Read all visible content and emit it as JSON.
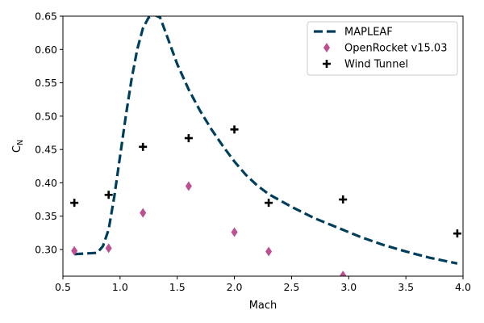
{
  "chart_data": {
    "type": "line",
    "xlabel": "Mach",
    "ylabel": "C_N",
    "xlim": [
      0.5,
      4.0
    ],
    "ylim": [
      0.26,
      0.65
    ],
    "x_ticks": [
      "0.5",
      "1.0",
      "1.5",
      "2.0",
      "2.5",
      "3.0",
      "3.5",
      "4.0"
    ],
    "y_ticks": [
      "0.30",
      "0.35",
      "0.40",
      "0.45",
      "0.50",
      "0.55",
      "0.60",
      "0.65"
    ],
    "grid": false,
    "legend_position": "top-right",
    "series": [
      {
        "name": "MAPLEAF",
        "kind": "line",
        "style": "dashed",
        "color": "#003f5c",
        "x": [
          0.6,
          0.8,
          0.85,
          0.9,
          0.95,
          1.0,
          1.05,
          1.1,
          1.15,
          1.2,
          1.25,
          1.3,
          1.35,
          1.4,
          1.5,
          1.6,
          1.7,
          1.8,
          1.9,
          2.0,
          2.1,
          2.2,
          2.3,
          2.5,
          2.7,
          2.9,
          3.1,
          3.3,
          3.5,
          3.7,
          3.95
        ],
        "y": [
          0.293,
          0.295,
          0.305,
          0.33,
          0.38,
          0.44,
          0.5,
          0.555,
          0.6,
          0.632,
          0.648,
          0.652,
          0.648,
          0.625,
          0.578,
          0.54,
          0.508,
          0.48,
          0.455,
          0.432,
          0.412,
          0.396,
          0.383,
          0.364,
          0.347,
          0.333,
          0.319,
          0.307,
          0.297,
          0.288,
          0.279
        ]
      },
      {
        "name": "OpenRocket v15.03",
        "kind": "marker",
        "marker": "diamond",
        "color": "#bc5090",
        "x": [
          0.6,
          0.9,
          1.2,
          1.6,
          2.0,
          2.3,
          2.95
        ],
        "y": [
          0.298,
          0.302,
          0.355,
          0.395,
          0.326,
          0.297,
          0.261
        ]
      },
      {
        "name": "Wind Tunnel",
        "kind": "marker",
        "marker": "plus",
        "color": "#000000",
        "x": [
          0.6,
          0.9,
          1.2,
          1.6,
          2.0,
          2.3,
          2.95,
          3.95
        ],
        "y": [
          0.37,
          0.382,
          0.454,
          0.467,
          0.48,
          0.37,
          0.375,
          0.324
        ]
      }
    ]
  }
}
